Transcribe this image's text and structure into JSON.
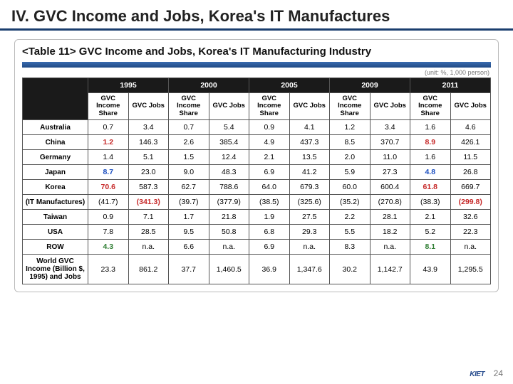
{
  "title": "IV. GVC Income and Jobs, Korea's IT Manufactures",
  "subtitle": "<Table 11> GVC Income and Jobs, Korea's IT Manufacturing Industry",
  "unit_note": "(unit: %, 1,000 person)",
  "page_number": "24",
  "logo_text": "KIET",
  "years": [
    "1995",
    "2000",
    "2005",
    "2009",
    "2011"
  ],
  "sub_headers": [
    "GVC Income Share",
    "GVC Jobs"
  ],
  "rows": [
    {
      "label": "Australia",
      "cells": [
        {
          "v": "0.7"
        },
        {
          "v": "3.4"
        },
        {
          "v": "0.7"
        },
        {
          "v": "5.4"
        },
        {
          "v": "0.9"
        },
        {
          "v": "4.1"
        },
        {
          "v": "1.2"
        },
        {
          "v": "3.4"
        },
        {
          "v": "1.6"
        },
        {
          "v": "4.6"
        }
      ]
    },
    {
      "label": "China",
      "cells": [
        {
          "v": "1.2",
          "c": "red"
        },
        {
          "v": "146.3"
        },
        {
          "v": "2.6"
        },
        {
          "v": "385.4"
        },
        {
          "v": "4.9"
        },
        {
          "v": "437.3"
        },
        {
          "v": "8.5"
        },
        {
          "v": "370.7"
        },
        {
          "v": "8.9",
          "c": "red"
        },
        {
          "v": "426.1"
        }
      ]
    },
    {
      "label": "Germany",
      "cells": [
        {
          "v": "1.4"
        },
        {
          "v": "5.1"
        },
        {
          "v": "1.5"
        },
        {
          "v": "12.4"
        },
        {
          "v": "2.1"
        },
        {
          "v": "13.5"
        },
        {
          "v": "2.0"
        },
        {
          "v": "11.0"
        },
        {
          "v": "1.6"
        },
        {
          "v": "11.5"
        }
      ]
    },
    {
      "label": "Japan",
      "cells": [
        {
          "v": "8.7",
          "c": "blue"
        },
        {
          "v": "23.0"
        },
        {
          "v": "9.0"
        },
        {
          "v": "48.3"
        },
        {
          "v": "6.9"
        },
        {
          "v": "41.2"
        },
        {
          "v": "5.9"
        },
        {
          "v": "27.3"
        },
        {
          "v": "4.8",
          "c": "blue"
        },
        {
          "v": "26.8"
        }
      ]
    },
    {
      "label": "Korea",
      "cells": [
        {
          "v": "70.6",
          "c": "red"
        },
        {
          "v": "587.3"
        },
        {
          "v": "62.7"
        },
        {
          "v": "788.6"
        },
        {
          "v": "64.0"
        },
        {
          "v": "679.3"
        },
        {
          "v": "60.0"
        },
        {
          "v": "600.4"
        },
        {
          "v": "61.8",
          "c": "red"
        },
        {
          "v": "669.7"
        }
      ]
    },
    {
      "label": "(IT Manufactures)",
      "cells": [
        {
          "v": "(41.7)"
        },
        {
          "v": "(341.3)",
          "c": "red"
        },
        {
          "v": "(39.7)"
        },
        {
          "v": "(377.9)"
        },
        {
          "v": "(38.5)"
        },
        {
          "v": "(325.6)"
        },
        {
          "v": "(35.2)"
        },
        {
          "v": "(270.8)"
        },
        {
          "v": "(38.3)"
        },
        {
          "v": "(299.8)",
          "c": "red"
        }
      ]
    },
    {
      "label": "Taiwan",
      "cells": [
        {
          "v": "0.9"
        },
        {
          "v": "7.1"
        },
        {
          "v": "1.7"
        },
        {
          "v": "21.8"
        },
        {
          "v": "1.9"
        },
        {
          "v": "27.5"
        },
        {
          "v": "2.2"
        },
        {
          "v": "28.1"
        },
        {
          "v": "2.1"
        },
        {
          "v": "32.6"
        }
      ]
    },
    {
      "label": "USA",
      "cells": [
        {
          "v": "7.8"
        },
        {
          "v": "28.5"
        },
        {
          "v": "9.5"
        },
        {
          "v": "50.8"
        },
        {
          "v": "6.8"
        },
        {
          "v": "29.3"
        },
        {
          "v": "5.5"
        },
        {
          "v": "18.2"
        },
        {
          "v": "5.2"
        },
        {
          "v": "22.3"
        }
      ]
    },
    {
      "label": "ROW",
      "cells": [
        {
          "v": "4.3",
          "c": "green"
        },
        {
          "v": "n.a."
        },
        {
          "v": "6.6"
        },
        {
          "v": "n.a."
        },
        {
          "v": "6.9"
        },
        {
          "v": "n.a."
        },
        {
          "v": "8.3"
        },
        {
          "v": "n.a."
        },
        {
          "v": "8.1",
          "c": "green"
        },
        {
          "v": "n.a."
        }
      ]
    },
    {
      "label": "World GVC Income (Billion $, 1995) and Jobs",
      "cells": [
        {
          "v": "23.3"
        },
        {
          "v": "861.2"
        },
        {
          "v": "37.7"
        },
        {
          "v": "1,460.5"
        },
        {
          "v": "36.9"
        },
        {
          "v": "1,347.6"
        },
        {
          "v": "30.2"
        },
        {
          "v": "1,142.7"
        },
        {
          "v": "43.9"
        },
        {
          "v": "1,295.5"
        }
      ]
    }
  ]
}
